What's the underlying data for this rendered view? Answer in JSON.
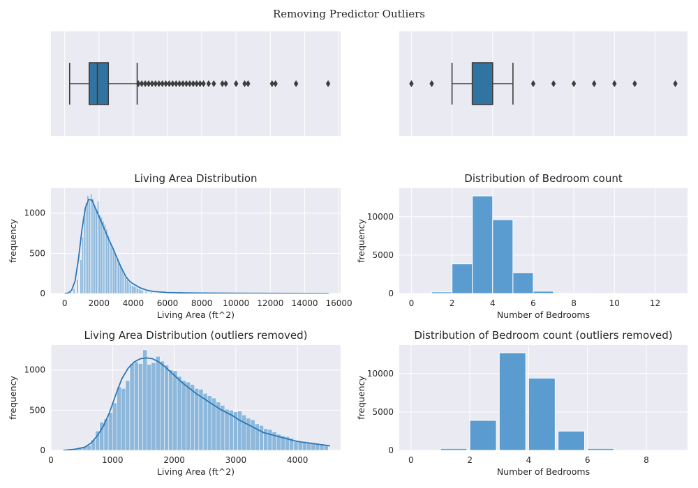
{
  "figure": {
    "suptitle": "Removing Predictor Outliers"
  },
  "colors": {
    "background": "#eaeaf2",
    "grid": "#ffffff",
    "box_fill": "#3274a1",
    "box_edge": "#3d3d3d",
    "bar_fill": "#5a9bd0",
    "bar_fill_light": "#8db8dc",
    "kde_line": "#2b78b7"
  },
  "chart_data": [
    {
      "id": "boxplot-living-area",
      "type": "boxplot",
      "title": "",
      "xlabel": "",
      "ylabel": "",
      "xlim": [
        -800,
        16100
      ],
      "grid_x": [
        0,
        2000,
        4000,
        6000,
        8000,
        10000,
        12000,
        14000,
        16000
      ],
      "whisker_low": 290,
      "q1": 1430,
      "median": 1910,
      "q3": 2550,
      "whisker_high": 4230,
      "outliers": [
        4300,
        4500,
        4700,
        4900,
        5100,
        5300,
        5500,
        5700,
        5900,
        6100,
        6300,
        6500,
        6700,
        6900,
        7100,
        7300,
        7500,
        7700,
        7900,
        8100,
        8400,
        8700,
        9200,
        9400,
        10000,
        10500,
        10700,
        12100,
        12300,
        13500,
        15370
      ]
    },
    {
      "id": "boxplot-bedrooms",
      "type": "boxplot",
      "title": "",
      "xlabel": "",
      "ylabel": "",
      "xlim": [
        -0.6,
        13.6
      ],
      "grid_x": [
        0,
        2,
        4,
        6,
        8,
        10,
        12
      ],
      "whisker_low": 2,
      "q1": 3,
      "median": 3,
      "q3": 4,
      "whisker_high": 5,
      "outliers": [
        0,
        1,
        6,
        7,
        8,
        9,
        10,
        11,
        13
      ]
    },
    {
      "id": "hist-living-area",
      "type": "histogram",
      "title": "Living Area Distribution",
      "xlabel": "Living Area (ft^2)",
      "ylabel": "frequency",
      "xlim": [
        -800,
        16100
      ],
      "ylim": [
        0,
        1310
      ],
      "xticks": [
        0,
        2000,
        4000,
        6000,
        8000,
        10000,
        12000,
        14000,
        16000
      ],
      "yticks": [
        0,
        500,
        1000
      ],
      "kde": true,
      "bins": [
        [
          300,
          20
        ],
        [
          500,
          60
        ],
        [
          700,
          180
        ],
        [
          900,
          420
        ],
        [
          1000,
          700
        ],
        [
          1100,
          980
        ],
        [
          1200,
          1130
        ],
        [
          1300,
          1220
        ],
        [
          1400,
          1150
        ],
        [
          1500,
          1240
        ],
        [
          1600,
          1180
        ],
        [
          1700,
          1100
        ],
        [
          1800,
          1050
        ],
        [
          1900,
          1150
        ],
        [
          2000,
          980
        ],
        [
          2100,
          950
        ],
        [
          2200,
          900
        ],
        [
          2300,
          860
        ],
        [
          2400,
          800
        ],
        [
          2500,
          720
        ],
        [
          2600,
          650
        ],
        [
          2700,
          600
        ],
        [
          2800,
          560
        ],
        [
          2900,
          500
        ],
        [
          3000,
          430
        ],
        [
          3100,
          390
        ],
        [
          3200,
          340
        ],
        [
          3300,
          290
        ],
        [
          3400,
          240
        ],
        [
          3500,
          200
        ],
        [
          3600,
          170
        ],
        [
          3700,
          140
        ],
        [
          3800,
          120
        ],
        [
          3900,
          100
        ],
        [
          4000,
          90
        ],
        [
          4100,
          80
        ],
        [
          4200,
          65
        ],
        [
          4300,
          55
        ],
        [
          4400,
          45
        ],
        [
          4500,
          35
        ],
        [
          4700,
          25
        ],
        [
          5000,
          18
        ],
        [
          5500,
          10
        ],
        [
          6000,
          6
        ],
        [
          7000,
          3
        ]
      ],
      "bin_width": 100,
      "kde_points": [
        [
          0,
          0
        ],
        [
          200,
          5
        ],
        [
          400,
          40
        ],
        [
          600,
          150
        ],
        [
          800,
          420
        ],
        [
          1000,
          780
        ],
        [
          1200,
          1060
        ],
        [
          1400,
          1170
        ],
        [
          1600,
          1160
        ],
        [
          1800,
          1060
        ],
        [
          2000,
          960
        ],
        [
          2200,
          860
        ],
        [
          2400,
          760
        ],
        [
          2600,
          660
        ],
        [
          2800,
          570
        ],
        [
          3000,
          470
        ],
        [
          3200,
          370
        ],
        [
          3400,
          280
        ],
        [
          3600,
          200
        ],
        [
          3800,
          150
        ],
        [
          4000,
          120
        ],
        [
          4200,
          95
        ],
        [
          4400,
          70
        ],
        [
          4800,
          40
        ],
        [
          5200,
          25
        ],
        [
          5600,
          18
        ],
        [
          6000,
          12
        ],
        [
          7000,
          7
        ],
        [
          8000,
          5
        ],
        [
          10000,
          3
        ],
        [
          12000,
          2
        ],
        [
          14000,
          1
        ],
        [
          15400,
          0
        ]
      ]
    },
    {
      "id": "hist-bedrooms",
      "type": "histogram",
      "title": "Distribution of Bedroom count",
      "xlabel": "Number of Bedrooms",
      "ylabel": "frequency",
      "xlim": [
        -0.6,
        13.6
      ],
      "ylim": [
        0,
        13700
      ],
      "xticks": [
        0,
        2,
        4,
        6,
        8,
        10,
        12
      ],
      "yticks": [
        0,
        5000,
        10000
      ],
      "kde": false,
      "bins": [
        [
          1,
          200
        ],
        [
          2,
          3850
        ],
        [
          3,
          12700
        ],
        [
          4,
          9600
        ],
        [
          5,
          2700
        ],
        [
          6,
          300
        ],
        [
          7,
          40
        ],
        [
          8,
          15
        ],
        [
          9,
          8
        ],
        [
          10,
          5
        ],
        [
          11,
          3
        ],
        [
          12,
          2
        ]
      ],
      "bin_width": 1
    },
    {
      "id": "hist-living-area-clean",
      "type": "histogram",
      "title": "Living Area Distribution (outliers removed)",
      "xlabel": "Living Area (ft^2)",
      "ylabel": "frequency",
      "xlim": [
        0,
        4700
      ],
      "ylim": [
        0,
        1310
      ],
      "xticks": [
        0,
        1000,
        2000,
        3000,
        4000
      ],
      "yticks": [
        0,
        500,
        1000
      ],
      "kde": true,
      "bins": [
        [
          300,
          5
        ],
        [
          370,
          15
        ],
        [
          440,
          25
        ],
        [
          510,
          40
        ],
        [
          580,
          60
        ],
        [
          650,
          130
        ],
        [
          720,
          240
        ],
        [
          790,
          350
        ],
        [
          860,
          390
        ],
        [
          930,
          470
        ],
        [
          1000,
          590
        ],
        [
          1070,
          790
        ],
        [
          1140,
          770
        ],
        [
          1210,
          870
        ],
        [
          1280,
          1080
        ],
        [
          1350,
          1100
        ],
        [
          1420,
          1080
        ],
        [
          1490,
          1250
        ],
        [
          1560,
          1070
        ],
        [
          1630,
          1090
        ],
        [
          1700,
          1170
        ],
        [
          1770,
          1110
        ],
        [
          1840,
          1060
        ],
        [
          1910,
          1000
        ],
        [
          1980,
          990
        ],
        [
          2050,
          920
        ],
        [
          2120,
          870
        ],
        [
          2190,
          850
        ],
        [
          2260,
          820
        ],
        [
          2330,
          770
        ],
        [
          2400,
          760
        ],
        [
          2470,
          710
        ],
        [
          2540,
          680
        ],
        [
          2610,
          650
        ],
        [
          2680,
          600
        ],
        [
          2750,
          560
        ],
        [
          2820,
          510
        ],
        [
          2890,
          500
        ],
        [
          2960,
          480
        ],
        [
          3030,
          490
        ],
        [
          3100,
          440
        ],
        [
          3170,
          400
        ],
        [
          3240,
          380
        ],
        [
          3310,
          330
        ],
        [
          3380,
          310
        ],
        [
          3450,
          270
        ],
        [
          3520,
          260
        ],
        [
          3590,
          230
        ],
        [
          3660,
          200
        ],
        [
          3730,
          180
        ],
        [
          3800,
          170
        ],
        [
          3870,
          150
        ],
        [
          3940,
          110
        ],
        [
          4010,
          110
        ],
        [
          4080,
          110
        ],
        [
          4150,
          100
        ],
        [
          4220,
          90
        ],
        [
          4290,
          80
        ],
        [
          4360,
          80
        ],
        [
          4430,
          60
        ]
      ],
      "bin_width": 70,
      "kde_points": [
        [
          200,
          0
        ],
        [
          400,
          15
        ],
        [
          550,
          40
        ],
        [
          650,
          90
        ],
        [
          750,
          180
        ],
        [
          850,
          300
        ],
        [
          950,
          470
        ],
        [
          1050,
          690
        ],
        [
          1150,
          890
        ],
        [
          1250,
          1020
        ],
        [
          1350,
          1100
        ],
        [
          1450,
          1140
        ],
        [
          1550,
          1150
        ],
        [
          1650,
          1140
        ],
        [
          1750,
          1100
        ],
        [
          1850,
          1040
        ],
        [
          1950,
          970
        ],
        [
          2050,
          900
        ],
        [
          2150,
          830
        ],
        [
          2250,
          770
        ],
        [
          2350,
          710
        ],
        [
          2450,
          660
        ],
        [
          2550,
          610
        ],
        [
          2650,
          560
        ],
        [
          2750,
          510
        ],
        [
          2850,
          470
        ],
        [
          2950,
          430
        ],
        [
          3050,
          380
        ],
        [
          3150,
          340
        ],
        [
          3250,
          300
        ],
        [
          3350,
          260
        ],
        [
          3450,
          220
        ],
        [
          3550,
          200
        ],
        [
          3650,
          180
        ],
        [
          3750,
          160
        ],
        [
          3850,
          140
        ],
        [
          3950,
          120
        ],
        [
          4050,
          105
        ],
        [
          4150,
          95
        ],
        [
          4250,
          85
        ],
        [
          4350,
          75
        ],
        [
          4450,
          65
        ],
        [
          4530,
          55
        ]
      ]
    },
    {
      "id": "hist-bedrooms-clean",
      "type": "histogram",
      "title": "Distribution of Bedroom count (outliers removed)",
      "xlabel": "Number of Bedrooms",
      "ylabel": "frequency",
      "xlim": [
        -0.4,
        9.4
      ],
      "ylim": [
        0,
        13700
      ],
      "xticks": [
        0,
        2,
        4,
        6,
        8
      ],
      "yticks": [
        0,
        5000,
        10000
      ],
      "kde": false,
      "bins": [
        [
          1,
          250
        ],
        [
          2,
          3900
        ],
        [
          3,
          12700
        ],
        [
          4,
          9400
        ],
        [
          5,
          2500
        ],
        [
          6,
          250
        ]
      ],
      "bin_width": 0.9
    }
  ]
}
